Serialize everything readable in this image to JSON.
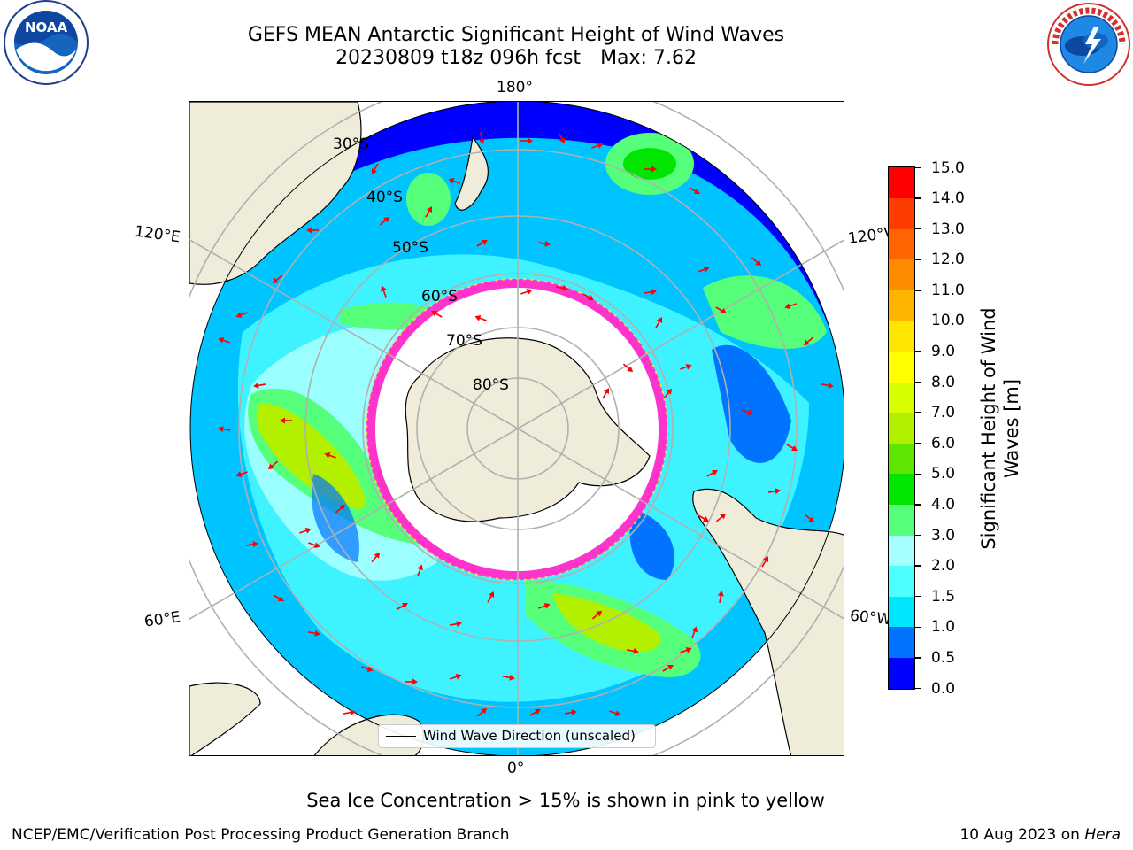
{
  "title": {
    "line1": "GEFS MEAN Antarctic Significant Height of Wind Waves",
    "run": "20230809 t18z 096h fcst",
    "max": "Max: 7.62"
  },
  "logos": {
    "left": {
      "icon": "noaa-logo-icon",
      "text": "NOAA"
    },
    "right": {
      "icon": "nws-logo-icon",
      "text": "NATIONAL WEATHER SERVICE"
    }
  },
  "map": {
    "projection": "south-polar-stereographic",
    "longitude_labels": [
      "180°",
      "120°E",
      "120°W",
      "60°E",
      "60°W",
      "0°"
    ],
    "latitude_labels": [
      "30°S",
      "40°S",
      "50°S",
      "60°S",
      "70°S",
      "80°S"
    ],
    "legend": "Wind Wave Direction (unscaled)",
    "arrow_color": "#ff0000",
    "land_color": "#efedd9"
  },
  "colorbar": {
    "label": "Significant Height of Wind Waves [m]",
    "label_line1": "Significant Height of Wind",
    "label_line2": "Waves [m]",
    "tick_labels": [
      "0.0",
      "0.5",
      "1.0",
      "1.5",
      "2.0",
      "3.0",
      "4.0",
      "5.0",
      "6.0",
      "7.0",
      "8.0",
      "9.0",
      "10.0",
      "11.0",
      "12.0",
      "13.0",
      "14.0",
      "15.0"
    ],
    "colors": [
      "#0000ff",
      "#0073ff",
      "#00e6ff",
      "#4dffff",
      "#a5ffff",
      "#55ff7a",
      "#00e600",
      "#5fe600",
      "#b3f000",
      "#d7ff00",
      "#ffff00",
      "#ffe600",
      "#ffb400",
      "#ff8c00",
      "#ff6400",
      "#ff3c00",
      "#ff0000"
    ]
  },
  "footnote": "Sea Ice Concentration > 15% is shown in pink to yellow",
  "credit": "NCEP/EMC/Verification Post Processing Product Generation Branch",
  "date": "10 Aug 2023 on",
  "host": "Hera"
}
